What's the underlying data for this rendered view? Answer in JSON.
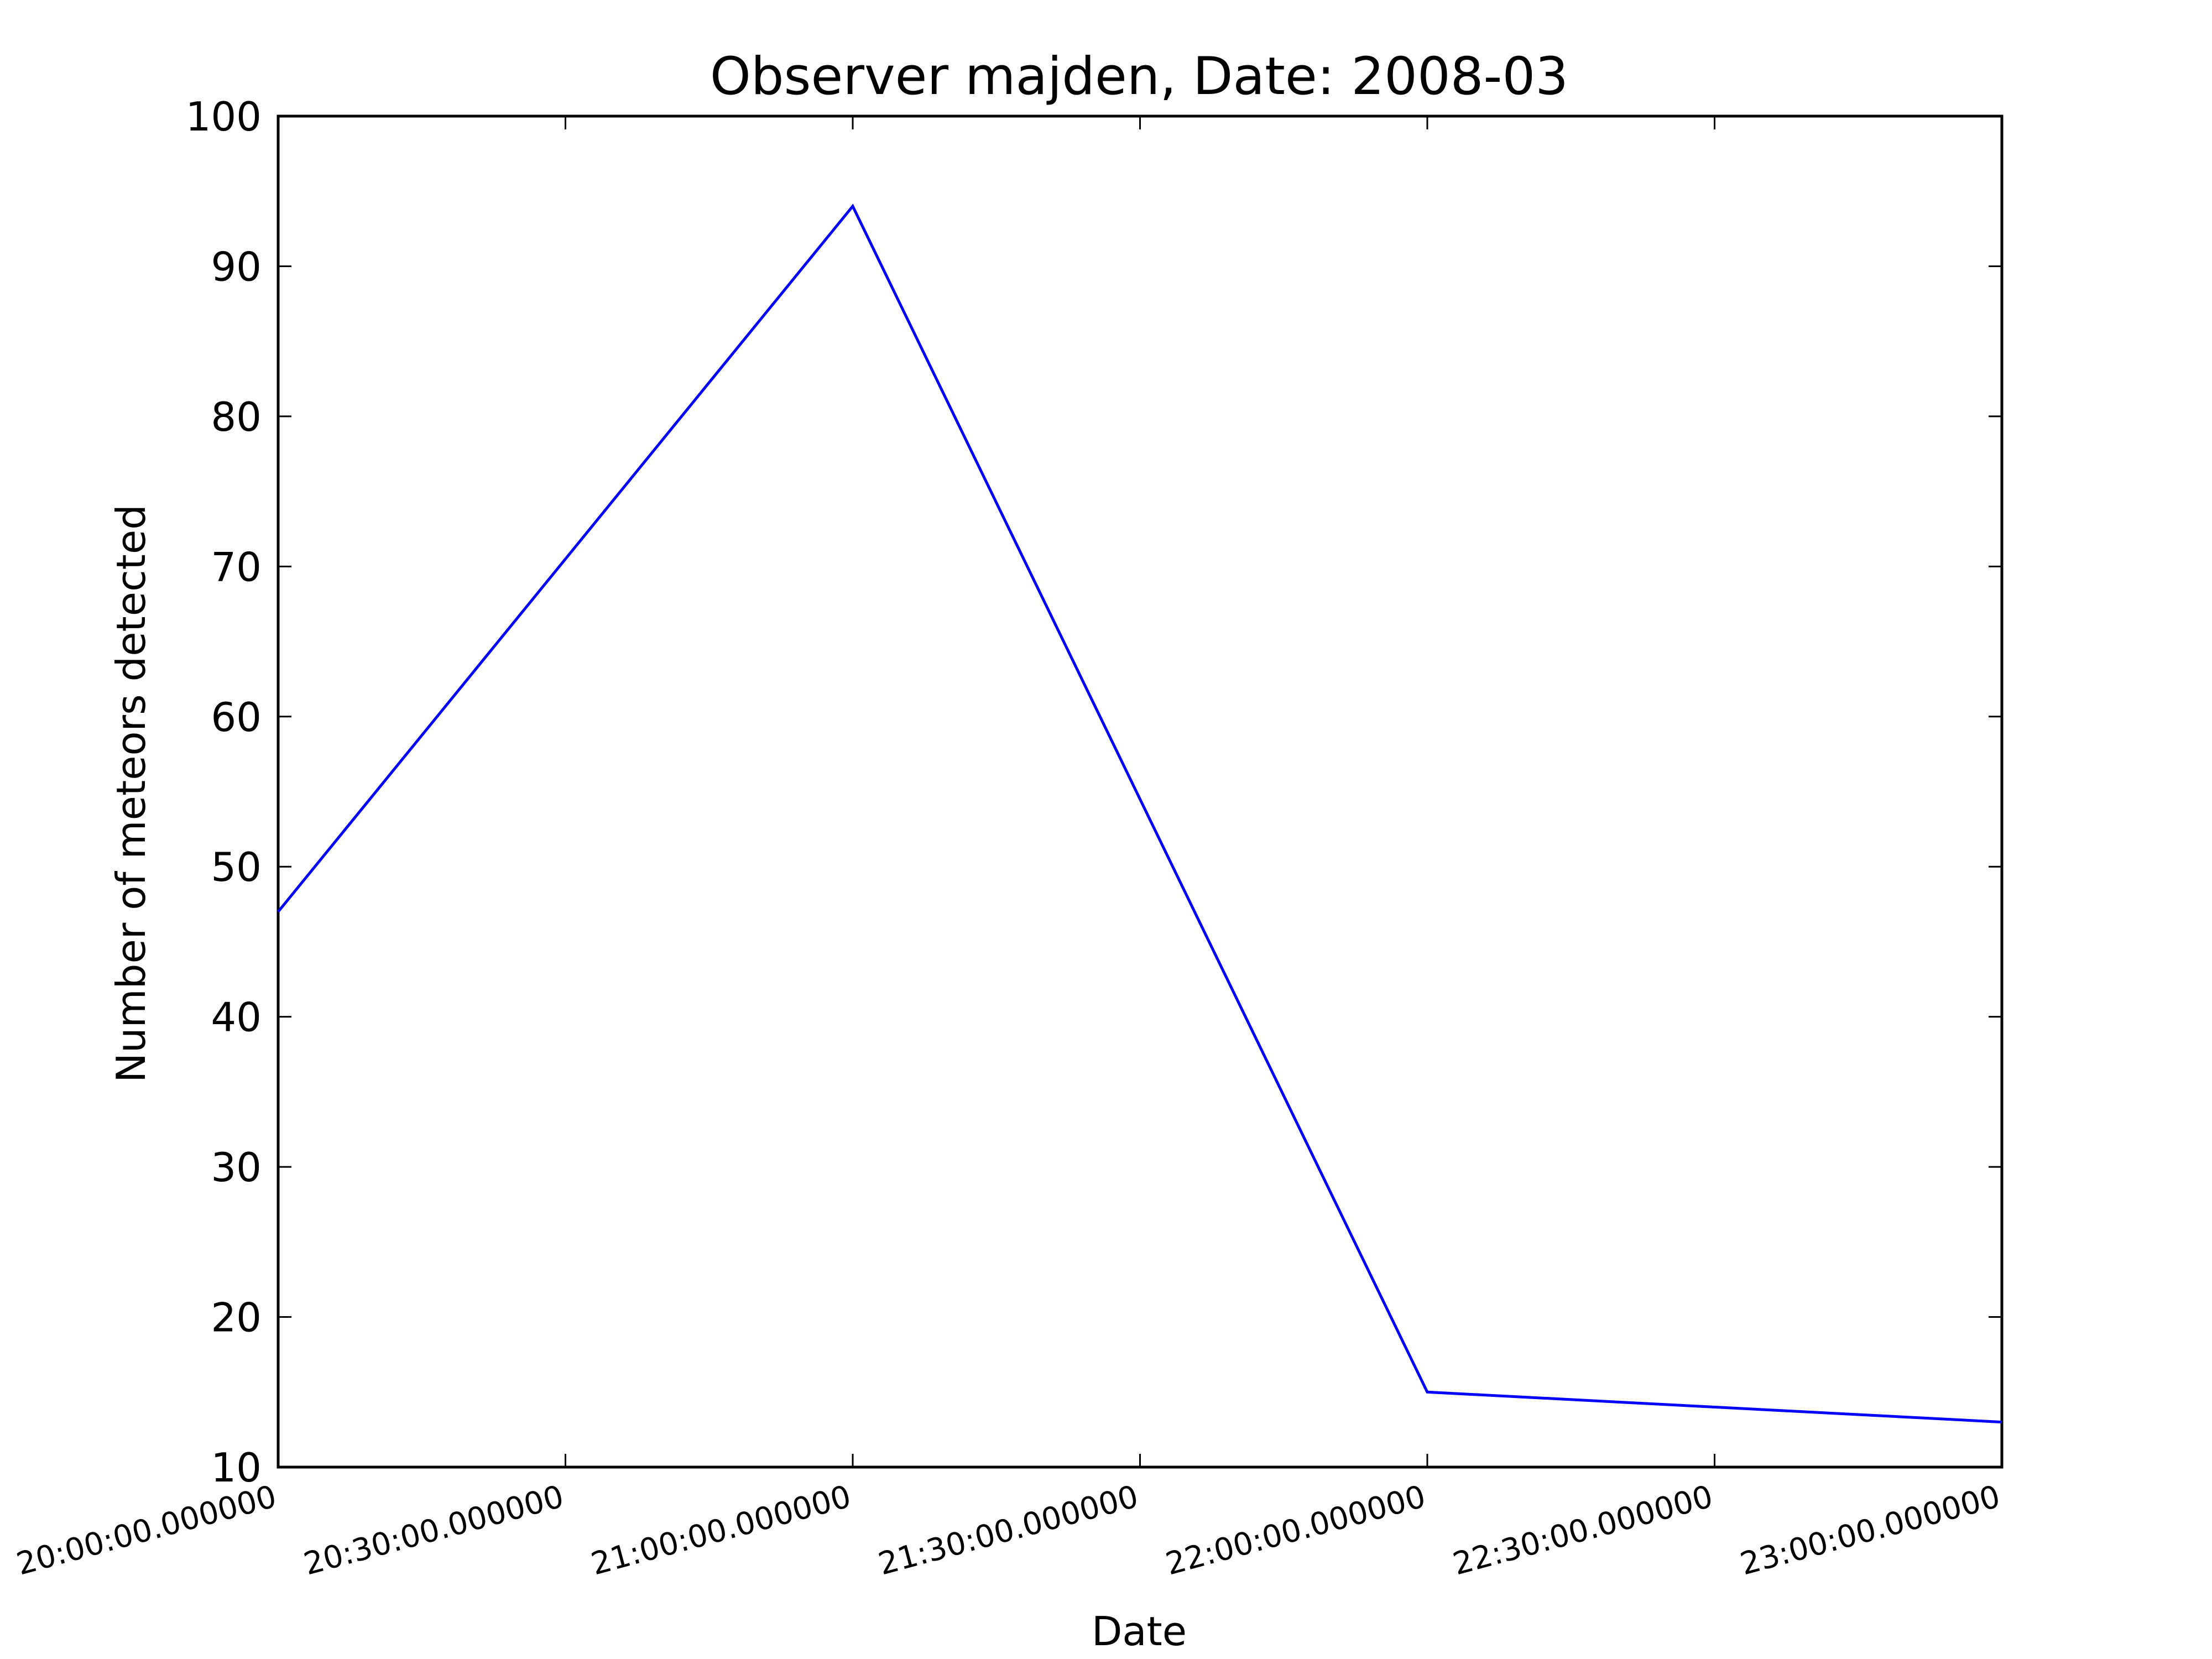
{
  "chart_data": {
    "type": "line",
    "title": "Observer majden, Date: 2008-03",
    "xlabel": "Date",
    "ylabel": "Number of meteors detected",
    "x": [
      "20:00:00.000000",
      "21:00:00.000000",
      "22:00:00.000000",
      "23:00:00.000000"
    ],
    "series": [
      {
        "values": [
          47,
          94,
          15,
          13
        ],
        "color": "#0000ff"
      }
    ],
    "xticks": [
      "20:00:00.000000",
      "20:30:00.000000",
      "21:00:00.000000",
      "21:30:00.000000",
      "22:00:00.000000",
      "22:30:00.000000",
      "23:00:00.000000"
    ],
    "xlim": [
      "20:00:00.000000",
      "23:00:00.000000"
    ],
    "ylim": [
      10,
      100
    ],
    "yticks": [
      "10",
      "20",
      "30",
      "40",
      "50",
      "60",
      "70",
      "80",
      "90",
      "100"
    ],
    "grid": false,
    "legend": "none"
  }
}
